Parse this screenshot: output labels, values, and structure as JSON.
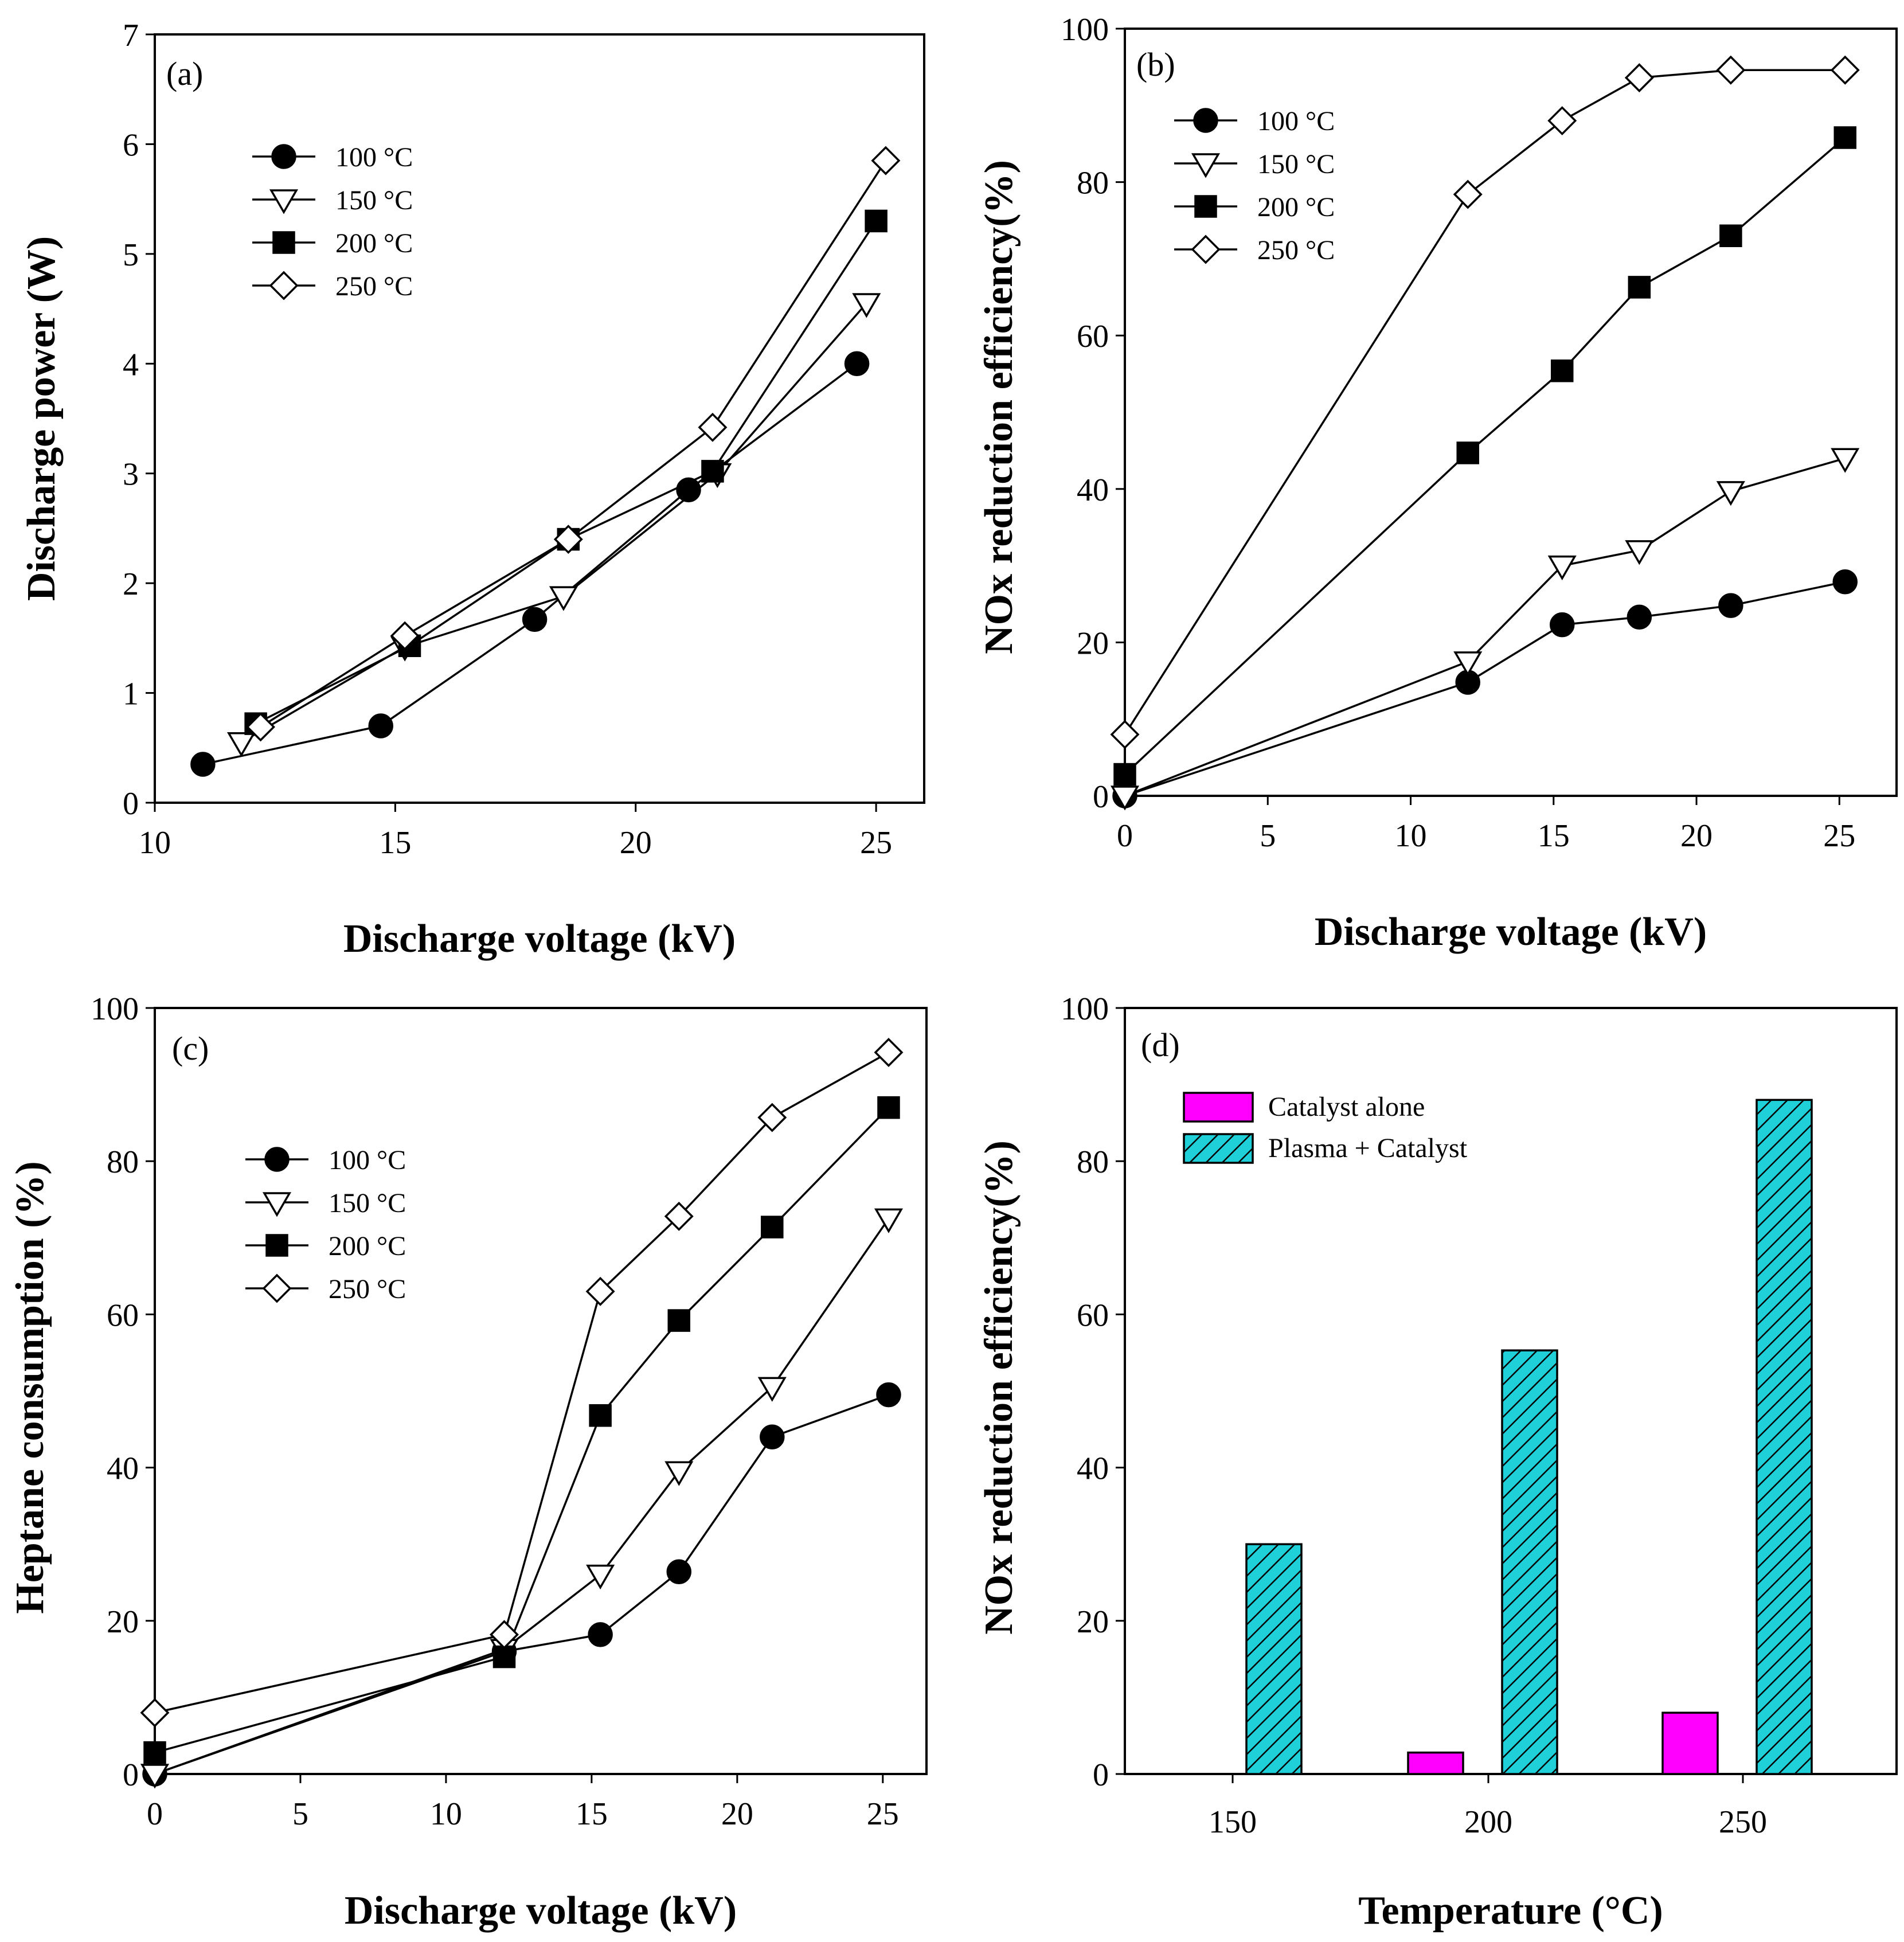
{
  "chart_data": [
    {
      "type": "line",
      "panel_label": "(a)",
      "title": "",
      "xlabel": "Discharge voltage (kV)",
      "ylabel": "Discharge power (W)",
      "xlim": [
        10,
        26
      ],
      "ylim": [
        0,
        7
      ],
      "xticks": [
        "10",
        "15",
        "20",
        "25"
      ],
      "yticks": [
        "0",
        "1",
        "2",
        "3",
        "4",
        "5",
        "6",
        "7"
      ],
      "legend_position": "upper-left",
      "series": [
        {
          "name": "100 °C",
          "marker": "filled-circle",
          "x": [
            11.0,
            14.7,
            17.9,
            21.1,
            24.6
          ],
          "values": [
            0.35,
            0.7,
            1.67,
            2.85,
            4.0
          ]
        },
        {
          "name": "150 °C",
          "marker": "open-triangle-down",
          "x": [
            11.8,
            15.2,
            18.5,
            21.7,
            24.8
          ],
          "values": [
            0.55,
            1.42,
            1.88,
            3.0,
            4.55
          ]
        },
        {
          "name": "200 °C",
          "marker": "filled-square",
          "x": [
            12.1,
            15.3,
            18.6,
            21.6,
            25.0
          ],
          "values": [
            0.72,
            1.43,
            2.4,
            3.02,
            5.3
          ]
        },
        {
          "name": "250 °C",
          "marker": "open-diamond",
          "x": [
            12.2,
            15.2,
            18.6,
            21.6,
            25.2
          ],
          "values": [
            0.69,
            1.52,
            2.4,
            3.42,
            5.85
          ]
        }
      ]
    },
    {
      "type": "line",
      "panel_label": "(b)",
      "title": "",
      "xlabel": "Discharge voltage (kV)",
      "ylabel": "NOx reduction efficiency(%)",
      "xlim": [
        0,
        27
      ],
      "ylim": [
        0,
        100
      ],
      "xticks": [
        "0",
        "5",
        "10",
        "15",
        "20",
        "25"
      ],
      "yticks": [
        "0",
        "20",
        "40",
        "60",
        "80",
        "100"
      ],
      "legend_position": "upper-left",
      "series": [
        {
          "name": "100 °C",
          "marker": "filled-circle",
          "x": [
            0,
            12.0,
            15.3,
            18.0,
            21.2,
            25.2
          ],
          "values": [
            0,
            14.8,
            22.3,
            23.3,
            24.8,
            27.9
          ]
        },
        {
          "name": "150 °C",
          "marker": "open-triangle-down",
          "x": [
            0,
            12.0,
            15.3,
            18.0,
            21.2,
            25.2
          ],
          "values": [
            0,
            17.5,
            30.0,
            32.0,
            39.7,
            44.0
          ]
        },
        {
          "name": "200 °C",
          "marker": "filled-square",
          "x": [
            0,
            12.0,
            15.3,
            18.0,
            21.2,
            25.2
          ],
          "values": [
            2.8,
            44.7,
            55.4,
            66.3,
            73.0,
            85.8
          ]
        },
        {
          "name": "250 °C",
          "marker": "open-diamond",
          "x": [
            0,
            12.0,
            15.3,
            18.0,
            21.2,
            25.2
          ],
          "values": [
            8.0,
            78.4,
            88.0,
            93.6,
            94.6,
            94.6
          ]
        }
      ]
    },
    {
      "type": "line",
      "panel_label": "(c)",
      "title": "",
      "xlabel": "Discharge voltage (kV)",
      "ylabel": "Heptane consumption (%)",
      "xlim": [
        0,
        26.5
      ],
      "ylim": [
        0,
        100
      ],
      "xticks": [
        "0",
        "5",
        "10",
        "15",
        "20",
        "25"
      ],
      "yticks": [
        "0",
        "20",
        "40",
        "60",
        "80",
        "100"
      ],
      "legend_position": "upper-left",
      "series": [
        {
          "name": "100 °C",
          "marker": "filled-circle",
          "x": [
            0,
            12.0,
            15.3,
            18.0,
            21.2,
            25.2
          ],
          "values": [
            0,
            16.0,
            18.2,
            26.4,
            44.0,
            49.5
          ]
        },
        {
          "name": "150 °C",
          "marker": "open-triangle-down",
          "x": [
            0,
            12.0,
            15.3,
            18.0,
            21.2,
            25.2
          ],
          "values": [
            0,
            16.3,
            26.0,
            39.5,
            50.5,
            72.5
          ]
        },
        {
          "name": "200 °C",
          "marker": "filled-square",
          "x": [
            0,
            12.0,
            15.3,
            18.0,
            21.2,
            25.2
          ],
          "values": [
            2.8,
            15.3,
            46.8,
            59.2,
            71.4,
            87.0
          ]
        },
        {
          "name": "250 °C",
          "marker": "open-diamond",
          "x": [
            0,
            12.0,
            15.3,
            18.0,
            21.2,
            25.2
          ],
          "values": [
            8.0,
            18.2,
            63.0,
            72.8,
            85.7,
            94.2
          ]
        }
      ]
    },
    {
      "type": "bar",
      "panel_label": "(d)",
      "title": "",
      "xlabel": "Temperature (°C)",
      "ylabel": "NOx reduction efficiency(%)",
      "ylim": [
        0,
        100
      ],
      "yticks": [
        "0",
        "20",
        "40",
        "60",
        "80",
        "100"
      ],
      "categories": [
        "150",
        "200",
        "250"
      ],
      "legend_position": "upper-left",
      "series": [
        {
          "name": "Catalyst alone",
          "color": "#ff00ff",
          "pattern": "solid",
          "values": [
            0,
            2.8,
            8.0
          ]
        },
        {
          "name": "Plasma + Catalyst",
          "color": "#20d0d8",
          "pattern": "diagonal-hatch",
          "values": [
            30.0,
            55.3,
            88.0
          ]
        }
      ]
    }
  ]
}
